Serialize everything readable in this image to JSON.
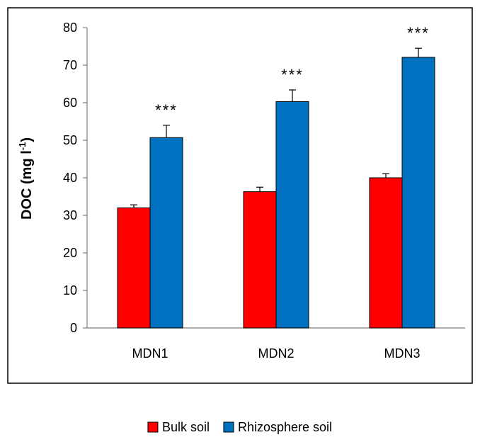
{
  "chart_data": {
    "type": "bar",
    "categories": [
      "MDN1",
      "MDN2",
      "MDN3"
    ],
    "series": [
      {
        "name": "Bulk soil",
        "color": "#ff0000",
        "values": [
          32,
          36.3,
          40
        ],
        "errors": [
          0.8,
          1.2,
          1.1
        ]
      },
      {
        "name": "Rhizosphere soil",
        "color": "#0070c0",
        "values": [
          50.7,
          60.3,
          72.1
        ],
        "errors": [
          3.3,
          3.1,
          2.4
        ]
      }
    ],
    "annotations": [
      "***",
      "***",
      "***"
    ],
    "ylabel_main": "DOC (mg l",
    "ylabel_sup": "-1",
    "ylabel_end": ")",
    "ylim": [
      0,
      80
    ],
    "yticks": [
      "0",
      "10",
      "20",
      "30",
      "40",
      "50",
      "60",
      "70",
      "80"
    ],
    "grid": false,
    "legend_position": "bottom"
  }
}
